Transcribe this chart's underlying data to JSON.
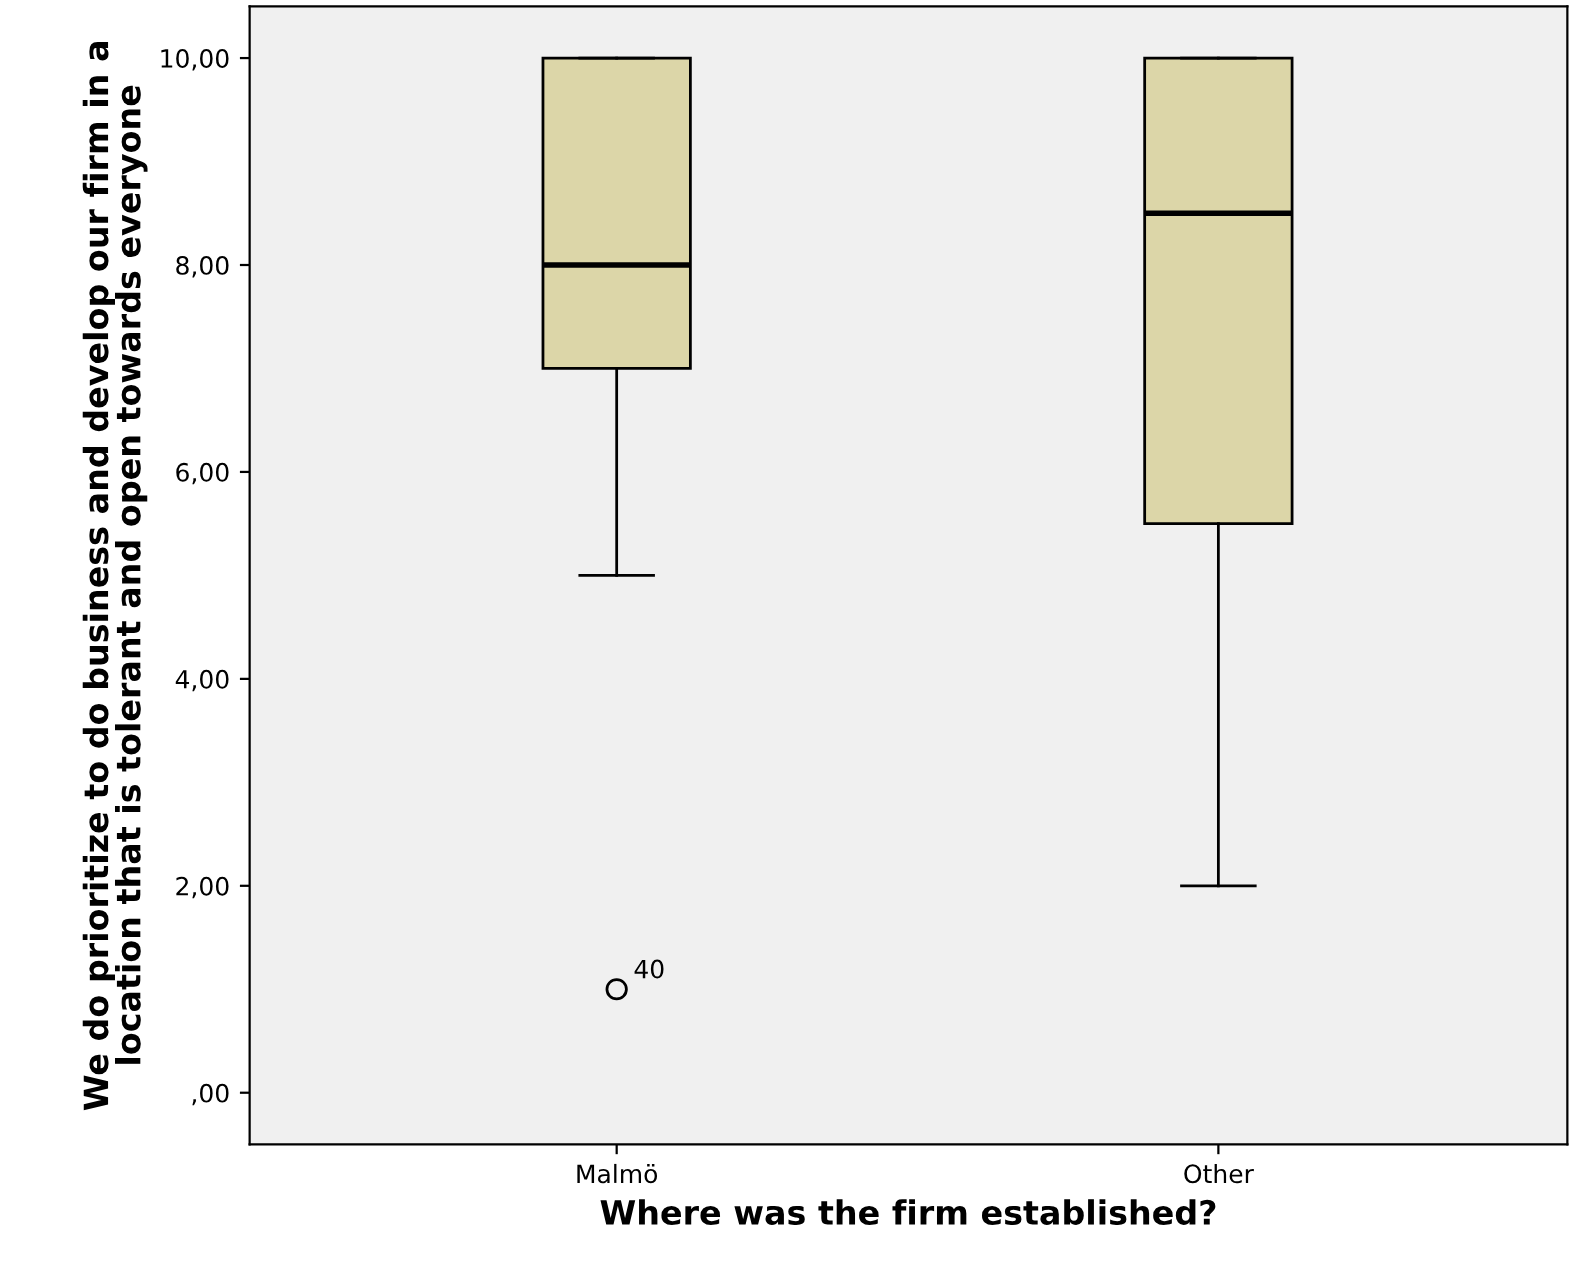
{
  "chart_data": {
    "type": "box",
    "xlabel": "Where was the firm established?",
    "ylabel": "We do prioritize to do business and develop our firm in a location that is tolerant and open towards everyone",
    "categories": [
      "Malmö",
      "Other"
    ],
    "boxes": [
      {
        "low": 5,
        "q1": 7,
        "median": 8,
        "q3": 10,
        "high": 10,
        "outliers": [
          1
        ]
      },
      {
        "low": 2,
        "q1": 5.5,
        "median": 8.5,
        "q3": 10,
        "high": 10
      }
    ],
    "color": "#dcd6a8",
    "ylim": [
      -0.5,
      10.5
    ],
    "yticks": [
      {
        "value": 0,
        "label": ",00"
      },
      {
        "value": 2,
        "label": "2,00"
      },
      {
        "value": 4,
        "label": "4,00"
      },
      {
        "value": 6,
        "label": "6,00"
      },
      {
        "value": 8,
        "label": "8,00"
      },
      {
        "value": 10,
        "label": "10,00"
      }
    ],
    "annotations": [
      "40"
    ],
    "grid": false,
    "legend": false
  }
}
